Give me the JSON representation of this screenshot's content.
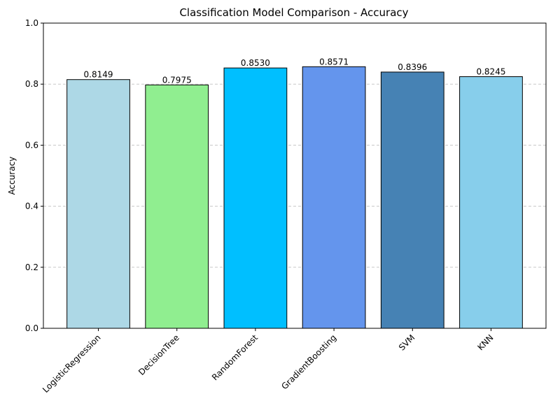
{
  "chart_data": {
    "type": "bar",
    "title": "Classification Model Comparison - Accuracy",
    "xlabel": "",
    "ylabel": "Accuracy",
    "ylim": [
      0,
      1.0
    ],
    "yticks": [
      0.0,
      0.2,
      0.4,
      0.6,
      0.8,
      1.0
    ],
    "ytick_labels": [
      "0.0",
      "0.2",
      "0.4",
      "0.6",
      "0.8",
      "1.0"
    ],
    "grid": "y-dashed",
    "categories": [
      "LogisticRegression",
      "DecisionTree",
      "RandomForest",
      "GradientBoosting",
      "SVM",
      "KNN"
    ],
    "values": [
      0.8149,
      0.7975,
      0.853,
      0.8571,
      0.8396,
      0.8245
    ],
    "value_labels": [
      "0.8149",
      "0.7975",
      "0.8530",
      "0.8571",
      "0.8396",
      "0.8245"
    ],
    "colors": [
      "#add8e6",
      "#90ee90",
      "#00bfff",
      "#6495ed",
      "#4682b4",
      "#87ceeb"
    ],
    "edge_color": "#000000",
    "grid_color": "#c8c8c8"
  }
}
